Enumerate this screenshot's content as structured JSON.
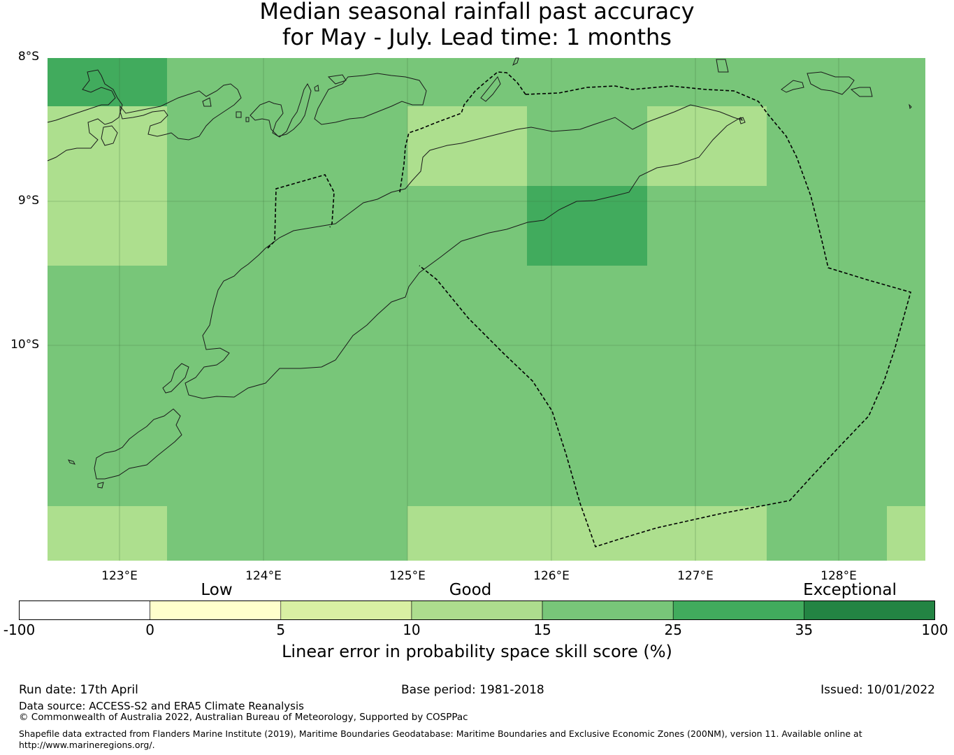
{
  "title": {
    "line1": "Median seasonal rainfall past accuracy",
    "line2": "for May - July. Lead time: 1 months"
  },
  "map": {
    "lat_labels": [
      "8°S",
      "9°S",
      "10°S"
    ],
    "lon_labels": [
      "123°E",
      "124°E",
      "125°E",
      "126°E",
      "127°E",
      "128°E"
    ],
    "extent": {
      "lon_min": 122.5,
      "lon_max": 128.6,
      "lat_min": -11.5,
      "lat_max": -8.0
    },
    "grid_cell_deg": {
      "lon": 0.833,
      "lat": 0.555
    },
    "colors": {
      "good_light": "#addf8e",
      "good": "#78c679",
      "exceptional_light": "#41ab5d"
    },
    "skill_cells": [
      {
        "lon": [
          122.5,
          123.33
        ],
        "lat": [
          -8.0,
          -8.33
        ],
        "class": "25-35"
      },
      {
        "lon": [
          122.5,
          123.33
        ],
        "lat": [
          -8.33,
          -9.44
        ],
        "class": "10-15"
      },
      {
        "lon": [
          125.0,
          125.83
        ],
        "lat": [
          -8.33,
          -8.89
        ],
        "class": "10-15"
      },
      {
        "lon": [
          126.67,
          127.5
        ],
        "lat": [
          -8.33,
          -8.89
        ],
        "class": "10-15"
      },
      {
        "lon": [
          125.83,
          126.67
        ],
        "lat": [
          -8.89,
          -9.44
        ],
        "class": "25-35"
      },
      {
        "lon": [
          122.5,
          123.33
        ],
        "lat": [
          -11.11,
          -11.5
        ],
        "class": "10-15"
      },
      {
        "lon": [
          125.0,
          127.5
        ],
        "lat": [
          -11.11,
          -11.5
        ],
        "class": "10-15"
      },
      {
        "lon": [
          128.33,
          128.6
        ],
        "lat": [
          -11.11,
          -11.5
        ],
        "class": "10-15"
      }
    ],
    "default_class": "15-25"
  },
  "colorbar": {
    "categories": [
      "Low",
      "Good",
      "Exceptional"
    ],
    "ticks": [
      "-100",
      "0",
      "5",
      "10",
      "15",
      "25",
      "35",
      "100"
    ],
    "colors": [
      "#ffffff",
      "#ffffcc",
      "#d9f0a3",
      "#addd8e",
      "#78c679",
      "#41ab5d",
      "#238443"
    ],
    "label": "Linear error in probability space skill score (%)"
  },
  "footer": {
    "run_date": "Run date: 17th April",
    "base_period": "Base period: 1981-2018",
    "issued": "Issued: 10/01/2022",
    "data_source": "Data source: ACCESS-S2 and ERA5 Climate Reanalysis",
    "copyright": "© Commonwealth of Australia 2022, Australian Bureau of Meteorology, Supported by COSPPac",
    "shapefile_line1": "Shapefile data extracted from Flanders Marine Institute (2019), Maritime Boundaries Geodatabase: Maritime Boundaries and Exclusive Economic Zones (200NM), version 11. Available online at",
    "shapefile_line2": "http://www.marineregions.org/."
  }
}
